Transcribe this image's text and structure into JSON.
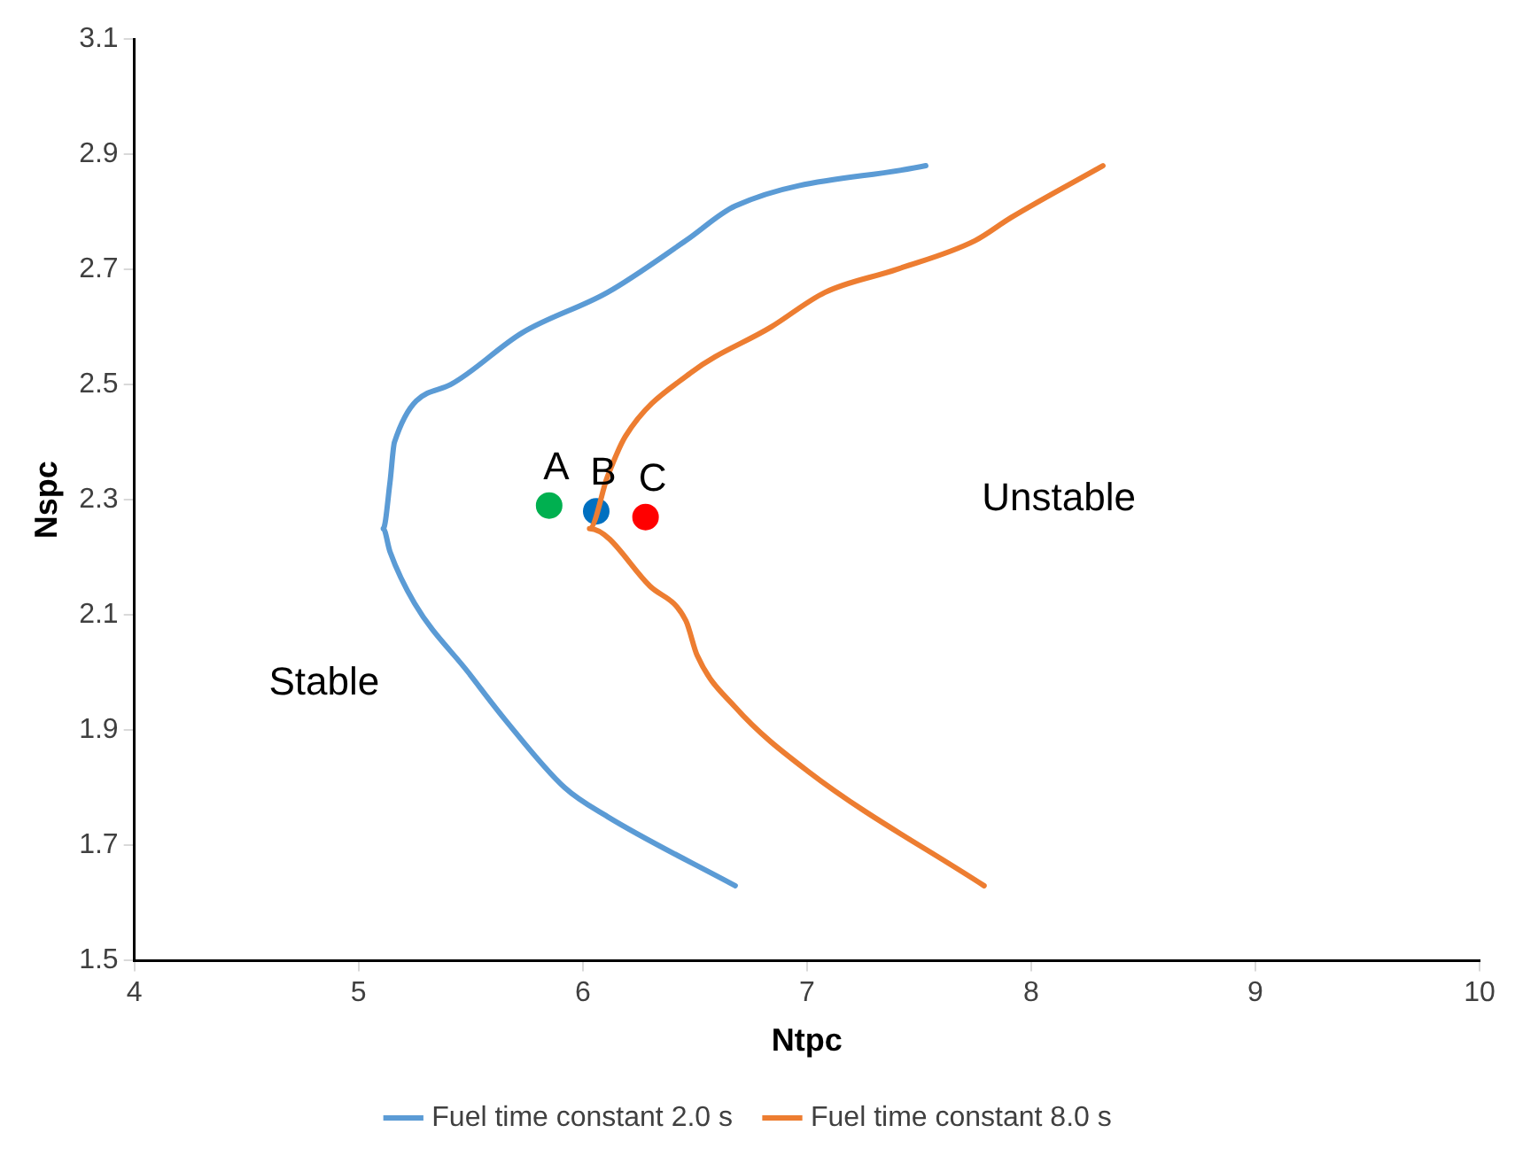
{
  "chart_data": {
    "type": "line",
    "xlabel": "Ntpc",
    "ylabel": "Nspc",
    "xlim": [
      4,
      10
    ],
    "ylim": [
      1.5,
      3.1
    ],
    "xticks": [
      4,
      5,
      6,
      7,
      8,
      9,
      10
    ],
    "yticks": [
      1.5,
      1.7,
      1.9,
      2.1,
      2.3,
      2.5,
      2.7,
      2.9,
      3.1
    ],
    "grid": false,
    "legend": "bottom",
    "line_style": "solid",
    "annotations": [
      "Stable",
      "Unstable"
    ],
    "series": [
      {
        "name": "Fuel time constant 2.0 s",
        "color": "#5b9bd5",
        "x": [
          7.53,
          6.68,
          6.46,
          6.11,
          5.73,
          5.41,
          5.16,
          5.14,
          5.11,
          5.14,
          5.25,
          5.49,
          5.65,
          5.92,
          6.11,
          6.68
        ],
        "values": [
          2.88,
          2.81,
          2.75,
          2.66,
          2.59,
          2.5,
          2.4,
          2.33,
          2.25,
          2.21,
          2.12,
          2.0,
          1.92,
          1.8,
          1.75,
          1.63
        ]
      },
      {
        "name": "Fuel time constant 8.0 s",
        "color": "#ed7d31",
        "x": [
          8.32,
          7.91,
          7.75,
          7.4,
          7.08,
          6.84,
          6.48,
          6.19,
          6.11,
          6.03,
          6.3,
          6.46,
          6.51,
          6.68,
          7.0,
          7.79
        ],
        "values": [
          2.88,
          2.79,
          2.75,
          2.7,
          2.66,
          2.6,
          2.52,
          2.41,
          2.34,
          2.25,
          2.15,
          2.09,
          2.03,
          1.94,
          1.83,
          1.63
        ]
      },
      {
        "name": "A",
        "type": "scatter",
        "marker": "circle",
        "color": "#00b050",
        "x": [
          5.85
        ],
        "values": [
          2.29
        ]
      },
      {
        "name": "B",
        "type": "scatter",
        "marker": "circle",
        "color": "#0070c0",
        "x": [
          6.06
        ],
        "values": [
          2.28
        ]
      },
      {
        "name": "C",
        "type": "scatter",
        "marker": "circle",
        "color": "#ff0000",
        "x": [
          6.28
        ],
        "values": [
          2.27
        ]
      }
    ]
  }
}
